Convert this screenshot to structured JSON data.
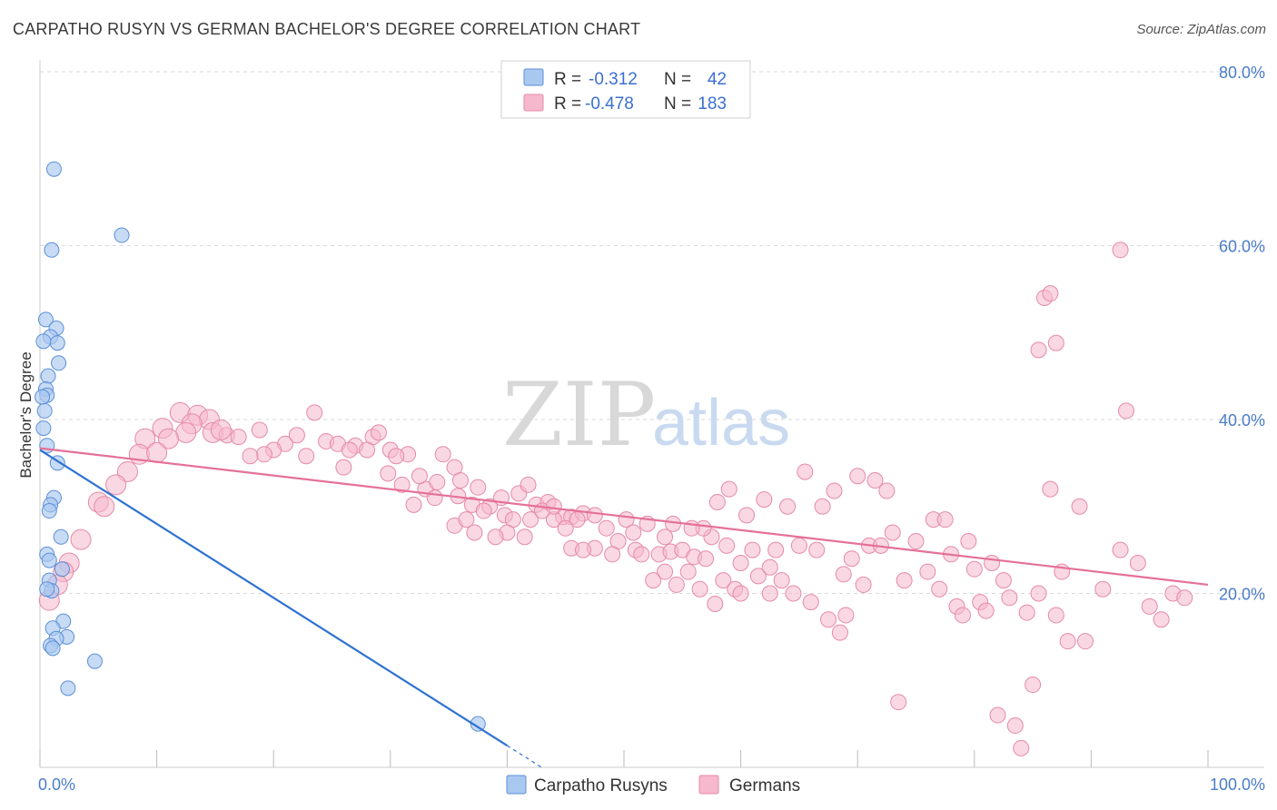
{
  "title": "CARPATHO RUSYN VS GERMAN BACHELOR'S DEGREE CORRELATION CHART",
  "source": "Source: ZipAtlas.com",
  "watermark": {
    "zip": "ZIP",
    "atlas": "atlas"
  },
  "colors": {
    "blue_fill": "#a9c8f0",
    "blue_stroke": "#5b8fd8",
    "blue_line": "#2f72d1",
    "pink_fill": "#f6b8cc",
    "pink_stroke": "#e58aa8",
    "pink_line": "#e5709a",
    "grid": "#d9d9d9",
    "tick_label": "#4a7cc9"
  },
  "legend": {
    "rows": [
      {
        "r_label": "R =",
        "r_value": "-0.312",
        "n_label": "N =",
        "n_value": "42"
      },
      {
        "r_label": "R =",
        "r_value": "-0.478",
        "n_label": "N =",
        "n_value": "183"
      }
    ]
  },
  "chart_data": {
    "type": "scatter",
    "title": "CARPATHO RUSYN VS GERMAN BACHELOR'S DEGREE CORRELATION CHART",
    "xlabel": "",
    "ylabel": "Bachelor's Degree",
    "xlim": [
      0,
      100
    ],
    "ylim": [
      0,
      80
    ],
    "x_tick_labels": [
      "0.0%",
      "100.0%"
    ],
    "y_ticks": [
      20,
      40,
      60,
      80
    ],
    "y_tick_labels": [
      "20.0%",
      "40.0%",
      "60.0%",
      "80.0%"
    ],
    "grid": true,
    "legend_placement": "top-center",
    "series": [
      {
        "name": "Carpatho Rusyns",
        "trend": {
          "x": [
            0,
            40
          ],
          "y": [
            36.5,
            2.5
          ],
          "dashed_extension_to_x": 43
        },
        "points": [
          [
            1.2,
            68.8
          ],
          [
            7.0,
            61.2
          ],
          [
            1.0,
            59.5
          ],
          [
            0.5,
            51.5
          ],
          [
            1.4,
            50.5
          ],
          [
            0.9,
            49.5
          ],
          [
            0.3,
            49.0
          ],
          [
            1.5,
            48.8
          ],
          [
            1.6,
            46.5
          ],
          [
            0.7,
            45.0
          ],
          [
            0.5,
            43.5
          ],
          [
            0.6,
            42.8
          ],
          [
            0.2,
            42.6
          ],
          [
            0.4,
            41.0
          ],
          [
            0.3,
            39.0
          ],
          [
            0.6,
            37.0
          ],
          [
            1.5,
            35.0
          ],
          [
            1.2,
            31.0
          ],
          [
            0.9,
            30.2
          ],
          [
            0.8,
            29.5
          ],
          [
            1.8,
            26.5
          ],
          [
            0.6,
            24.5
          ],
          [
            0.8,
            23.8
          ],
          [
            1.9,
            22.8
          ],
          [
            0.8,
            21.5
          ],
          [
            1.0,
            20.3
          ],
          [
            0.6,
            20.5
          ],
          [
            2.0,
            16.8
          ],
          [
            1.1,
            16.0
          ],
          [
            2.3,
            15.0
          ],
          [
            1.4,
            14.8
          ],
          [
            0.9,
            14.0
          ],
          [
            1.1,
            13.7
          ],
          [
            4.7,
            12.2
          ],
          [
            2.4,
            9.1
          ],
          [
            37.5,
            5.0
          ]
        ]
      },
      {
        "name": "Germans",
        "trend": {
          "x": [
            0,
            100
          ],
          "y": [
            36.7,
            21.0
          ]
        },
        "points": [
          [
            12.0,
            40.8
          ],
          [
            13.5,
            40.5
          ],
          [
            14.5,
            40.0
          ],
          [
            13.0,
            39.5
          ],
          [
            10.5,
            39.0
          ],
          [
            12.5,
            38.5
          ],
          [
            11.0,
            37.8
          ],
          [
            9.0,
            37.8
          ],
          [
            14.8,
            38.5
          ],
          [
            16.0,
            38.2
          ],
          [
            17.0,
            38.0
          ],
          [
            15.5,
            38.8
          ],
          [
            18.8,
            38.8
          ],
          [
            8.5,
            36.0
          ],
          [
            10.0,
            36.2
          ],
          [
            7.5,
            34.0
          ],
          [
            6.5,
            32.5
          ],
          [
            5.0,
            30.5
          ],
          [
            5.5,
            30.0
          ],
          [
            3.5,
            26.2
          ],
          [
            2.5,
            23.5
          ],
          [
            2.0,
            22.5
          ],
          [
            1.5,
            21.0
          ],
          [
            0.8,
            19.2
          ],
          [
            23.5,
            40.8
          ],
          [
            22.0,
            38.2
          ],
          [
            24.5,
            37.5
          ],
          [
            25.5,
            37.2
          ],
          [
            27.0,
            37.0
          ],
          [
            28.5,
            38.0
          ],
          [
            29.0,
            38.5
          ],
          [
            21.0,
            37.2
          ],
          [
            20.0,
            36.5
          ],
          [
            19.2,
            36.0
          ],
          [
            18.0,
            35.8
          ],
          [
            22.8,
            35.8
          ],
          [
            26.5,
            36.5
          ],
          [
            28.0,
            36.5
          ],
          [
            30.0,
            36.5
          ],
          [
            31.5,
            36.0
          ],
          [
            30.5,
            35.8
          ],
          [
            26.0,
            34.5
          ],
          [
            29.8,
            33.8
          ],
          [
            34.5,
            36.0
          ],
          [
            35.5,
            34.5
          ],
          [
            31.0,
            32.5
          ],
          [
            33.0,
            32.0
          ],
          [
            32.5,
            33.5
          ],
          [
            34.0,
            32.8
          ],
          [
            36.0,
            33.0
          ],
          [
            37.5,
            32.2
          ],
          [
            38.5,
            30.0
          ],
          [
            39.5,
            31.0
          ],
          [
            41.0,
            31.5
          ],
          [
            42.5,
            30.2
          ],
          [
            41.8,
            32.5
          ],
          [
            43.5,
            30.5
          ],
          [
            35.8,
            31.2
          ],
          [
            33.8,
            31.0
          ],
          [
            32.0,
            30.2
          ],
          [
            37.0,
            30.2
          ],
          [
            38.0,
            29.5
          ],
          [
            39.8,
            29.0
          ],
          [
            40.5,
            28.5
          ],
          [
            41.5,
            26.5
          ],
          [
            44.8,
            28.8
          ],
          [
            45.5,
            28.8
          ],
          [
            46.5,
            29.2
          ],
          [
            47.5,
            29.0
          ],
          [
            46.0,
            28.5
          ],
          [
            35.5,
            27.8
          ],
          [
            44.0,
            28.5
          ],
          [
            50.2,
            28.5
          ],
          [
            50.8,
            27.0
          ],
          [
            52.0,
            28.0
          ],
          [
            48.5,
            27.5
          ],
          [
            49.5,
            26.0
          ],
          [
            47.5,
            25.2
          ],
          [
            51.0,
            25.0
          ],
          [
            45.5,
            25.2
          ],
          [
            46.5,
            25.0
          ],
          [
            49.0,
            24.5
          ],
          [
            51.5,
            24.5
          ],
          [
            53.0,
            24.5
          ],
          [
            54.0,
            24.8
          ],
          [
            55.0,
            25.0
          ],
          [
            56.0,
            24.2
          ],
          [
            57.0,
            24.0
          ],
          [
            57.5,
            26.5
          ],
          [
            53.5,
            22.5
          ],
          [
            55.5,
            22.5
          ],
          [
            52.5,
            21.5
          ],
          [
            54.5,
            21.0
          ],
          [
            56.5,
            20.5
          ],
          [
            58.5,
            21.5
          ],
          [
            59.5,
            20.5
          ],
          [
            60.0,
            20.0
          ],
          [
            61.5,
            22.0
          ],
          [
            62.5,
            20.0
          ],
          [
            64.5,
            20.0
          ],
          [
            63.5,
            21.5
          ],
          [
            57.8,
            18.8
          ],
          [
            66.0,
            19.0
          ],
          [
            67.5,
            17.0
          ],
          [
            68.5,
            15.5
          ],
          [
            69.0,
            17.5
          ],
          [
            69.5,
            24.0
          ],
          [
            71.0,
            25.5
          ],
          [
            72.0,
            25.5
          ],
          [
            73.0,
            27.0
          ],
          [
            75.0,
            26.0
          ],
          [
            76.5,
            28.5
          ],
          [
            77.5,
            28.5
          ],
          [
            78.0,
            24.5
          ],
          [
            79.5,
            26.0
          ],
          [
            80.0,
            22.8
          ],
          [
            81.5,
            23.5
          ],
          [
            82.5,
            21.5
          ],
          [
            84.5,
            17.8
          ],
          [
            85.5,
            20.0
          ],
          [
            87.0,
            17.5
          ],
          [
            87.5,
            22.5
          ],
          [
            89.0,
            30.0
          ],
          [
            86.5,
            32.0
          ],
          [
            88.0,
            14.5
          ],
          [
            89.5,
            14.5
          ],
          [
            91.0,
            20.5
          ],
          [
            92.5,
            25.0
          ],
          [
            94.0,
            23.5
          ],
          [
            95.0,
            18.5
          ],
          [
            96.0,
            17.0
          ],
          [
            97.0,
            20.0
          ],
          [
            98.0,
            19.5
          ],
          [
            73.5,
            7.5
          ],
          [
            82.0,
            6.0
          ],
          [
            83.5,
            4.8
          ],
          [
            84.0,
            2.2
          ],
          [
            85.0,
            9.5
          ],
          [
            86.0,
            54.0
          ],
          [
            86.5,
            54.5
          ],
          [
            87.0,
            48.8
          ],
          [
            85.5,
            48.0
          ],
          [
            92.5,
            59.5
          ],
          [
            93.0,
            41.0
          ],
          [
            70.0,
            33.5
          ],
          [
            71.5,
            33.0
          ],
          [
            72.5,
            31.8
          ],
          [
            68.0,
            31.8
          ],
          [
            67.0,
            30.0
          ],
          [
            64.0,
            30.0
          ],
          [
            62.0,
            30.8
          ],
          [
            60.5,
            29.0
          ],
          [
            58.0,
            30.5
          ],
          [
            59.0,
            32.0
          ],
          [
            65.5,
            34.0
          ],
          [
            61.0,
            25.0
          ],
          [
            65.0,
            25.5
          ],
          [
            66.5,
            25.0
          ],
          [
            68.8,
            22.2
          ],
          [
            70.5,
            21.0
          ],
          [
            74.0,
            21.5
          ],
          [
            76.0,
            22.5
          ],
          [
            77.0,
            20.5
          ],
          [
            78.5,
            18.5
          ],
          [
            80.5,
            19.0
          ],
          [
            83.0,
            19.5
          ],
          [
            79.0,
            17.5
          ],
          [
            81.0,
            18.0
          ],
          [
            62.5,
            23.0
          ],
          [
            63.0,
            25.0
          ],
          [
            60.0,
            23.5
          ],
          [
            58.8,
            25.5
          ],
          [
            56.8,
            27.5
          ],
          [
            55.8,
            27.5
          ],
          [
            54.2,
            28.0
          ],
          [
            53.5,
            26.5
          ],
          [
            42.0,
            28.5
          ],
          [
            43.0,
            29.5
          ],
          [
            44.0,
            30.0
          ],
          [
            45.0,
            27.5
          ],
          [
            40.0,
            27.0
          ],
          [
            39.0,
            26.5
          ],
          [
            36.5,
            28.5
          ],
          [
            37.2,
            27.0
          ]
        ]
      }
    ]
  },
  "bottom_legend": {
    "items": [
      "Carpatho Rusyns",
      "Germans"
    ]
  }
}
